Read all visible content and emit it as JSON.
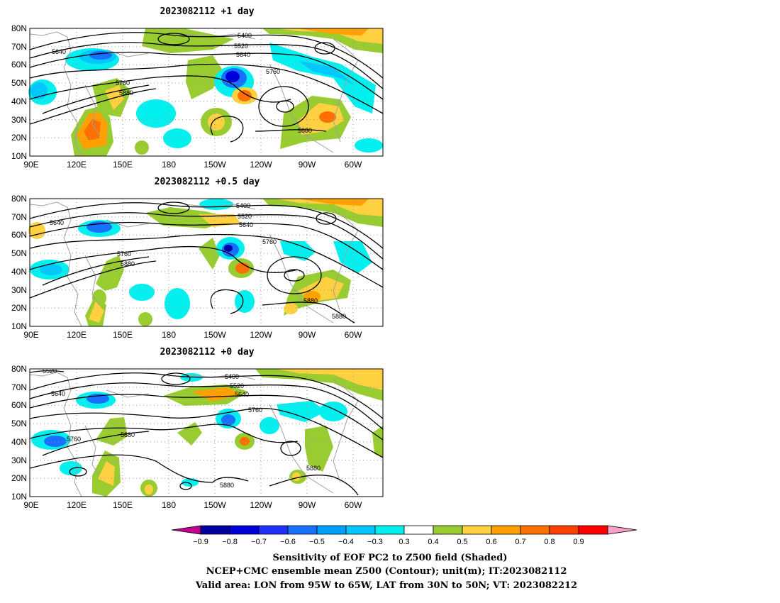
{
  "panels": [
    {
      "title": "2023082112 +1 day",
      "contour_labels": [
        "5400",
        "5520",
        "5640",
        "5640",
        "5760",
        "5760",
        "5880",
        "5880"
      ]
    },
    {
      "title": "2023082112 +0.5 day",
      "contour_labels": [
        "5400",
        "5520",
        "5640",
        "5640",
        "5760",
        "5760",
        "5880",
        "5880",
        "5880"
      ]
    },
    {
      "title": "2023082112 +0 day",
      "contour_labels": [
        "5520",
        "5400",
        "5520",
        "5640",
        "5640",
        "5760",
        "5760",
        "5880",
        "5880",
        "5880"
      ]
    }
  ],
  "lat_labels": [
    "80N",
    "70N",
    "60N",
    "50N",
    "40N",
    "30N",
    "20N",
    "10N"
  ],
  "lon_labels": [
    "90E",
    "120E",
    "150E",
    "180",
    "150W",
    "120W",
    "90W",
    "60W"
  ],
  "colorbar": {
    "labels": [
      "-0.9",
      "-0.8",
      "-0.7",
      "-0.6",
      "-0.5",
      "-0.4",
      "-0.3",
      "0.3",
      "0.4",
      "0.5",
      "0.6",
      "0.7",
      "0.8",
      "0.9"
    ],
    "colors": [
      "#c00090",
      "#0000a0",
      "#0000dd",
      "#2030ff",
      "#1870ff",
      "#00a0ff",
      "#00c8ff",
      "#00f0f0",
      "#ffffff",
      "#98cc30",
      "#ffd040",
      "#ffa000",
      "#ff7000",
      "#ff4000",
      "#ff0000",
      "#f8a0c8"
    ]
  },
  "captions": [
    "Sensitivity of EOF PC2 to Z500 field (Shaded)",
    "NCEP+CMC ensemble mean Z500 (Contour); unit(m); IT:2023082112",
    "Valid area: LON from 95W to 65W, LAT from 30N to 50N; VT: 2023082212"
  ]
}
